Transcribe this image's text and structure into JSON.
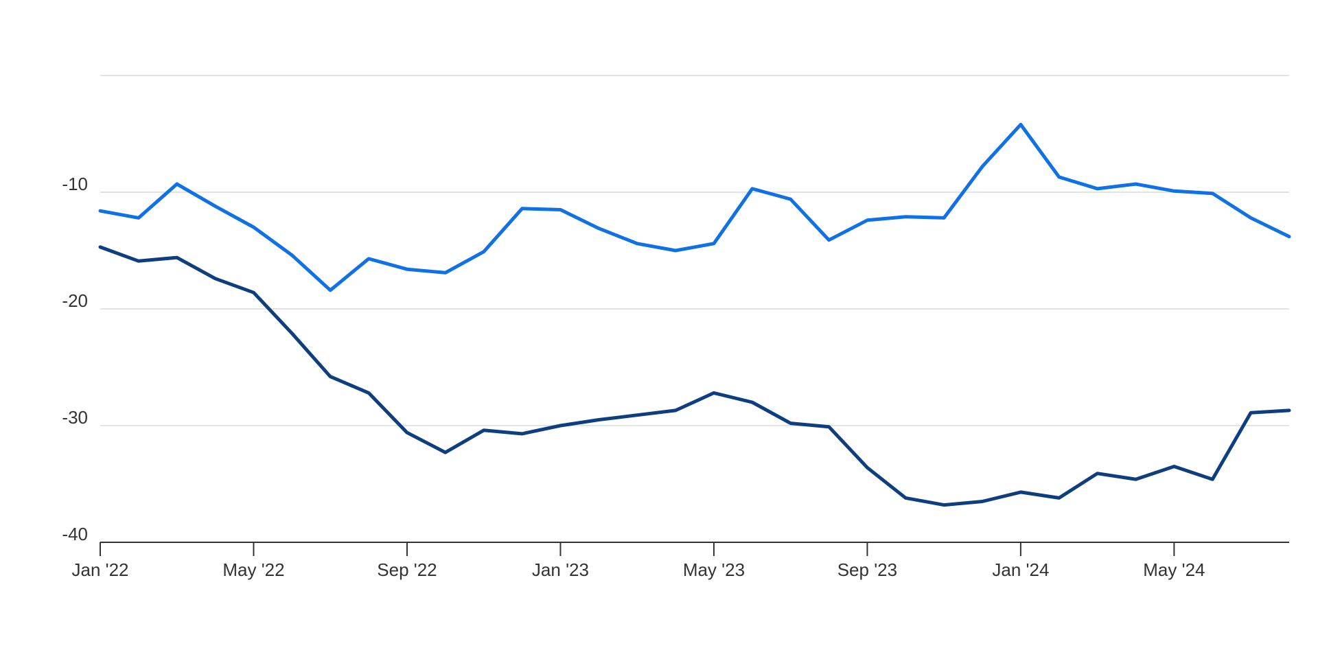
{
  "chart_data": {
    "type": "line",
    "title": "",
    "xlabel": "",
    "ylabel": "",
    "ylim": [
      -40,
      0
    ],
    "xlim": [
      "2022-01",
      "2024-07"
    ],
    "y_ticks": [
      {
        "value": -10,
        "label": "-10"
      },
      {
        "value": -20,
        "label": "-20"
      },
      {
        "value": -30,
        "label": "-30"
      },
      {
        "value": -40,
        "label": "-40"
      }
    ],
    "gridline_values": [
      0,
      -10,
      -20,
      -30
    ],
    "x_ticks": [
      {
        "date": "2022-01",
        "label": "Jan '22"
      },
      {
        "date": "2022-05",
        "label": "May '22"
      },
      {
        "date": "2022-09",
        "label": "Sep '22"
      },
      {
        "date": "2023-01",
        "label": "Jan '23"
      },
      {
        "date": "2023-05",
        "label": "May '23"
      },
      {
        "date": "2023-09",
        "label": "Sep '23"
      },
      {
        "date": "2024-01",
        "label": "Jan '24"
      },
      {
        "date": "2024-05",
        "label": "May '24"
      }
    ],
    "grid": true,
    "legend": false,
    "x": [
      "2022-01",
      "2022-02",
      "2022-03",
      "2022-04",
      "2022-05",
      "2022-06",
      "2022-07",
      "2022-08",
      "2022-09",
      "2022-10",
      "2022-11",
      "2022-12",
      "2023-01",
      "2023-02",
      "2023-03",
      "2023-04",
      "2023-05",
      "2023-06",
      "2023-07",
      "2023-08",
      "2023-09",
      "2023-10",
      "2023-11",
      "2023-12",
      "2024-01",
      "2024-02",
      "2024-03",
      "2024-04",
      "2024-05",
      "2024-06",
      "2024-07",
      "2024-08"
    ],
    "series": [
      {
        "color": "#1070e6",
        "values": [
          -11.6,
          -12.2,
          -9.3,
          -11.2,
          -13.0,
          -15.4,
          -18.4,
          -15.7,
          -16.6,
          -16.9,
          -15.1,
          -11.4,
          -11.5,
          -13.1,
          -14.4,
          -15.0,
          -14.4,
          -9.7,
          -10.6,
          -14.1,
          -12.4,
          -12.1,
          -12.2,
          -7.8,
          -4.2,
          -8.7,
          -9.7,
          -9.3,
          -9.9,
          -10.1,
          -12.2,
          -13.8
        ]
      },
      {
        "color": "#0f3e7e",
        "values": [
          -14.7,
          -15.9,
          -15.6,
          -17.4,
          -18.6,
          -22.1,
          -25.8,
          -27.2,
          -30.6,
          -32.3,
          -30.4,
          -30.7,
          -30.0,
          -29.5,
          -29.1,
          -28.7,
          -27.2,
          -28.0,
          -29.8,
          -30.1,
          -33.6,
          -36.2,
          -36.8,
          -36.5,
          -35.7,
          -36.2,
          -34.1,
          -34.6,
          -33.5,
          -34.6,
          -28.9,
          -28.7
        ]
      }
    ]
  }
}
